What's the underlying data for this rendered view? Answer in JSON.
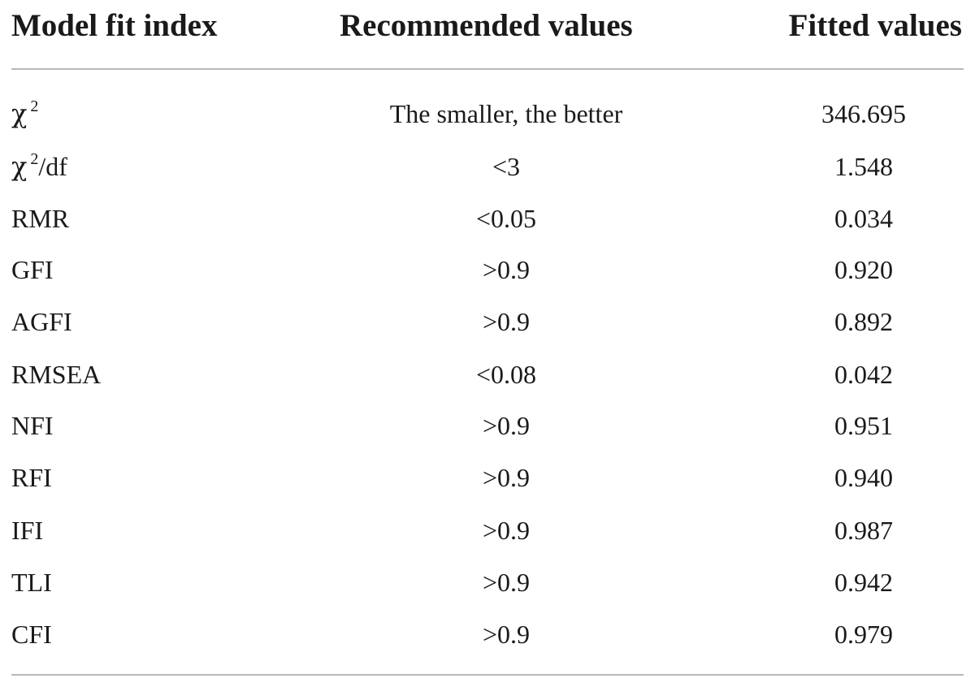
{
  "table": {
    "headers": [
      "Model fit index",
      "Recommended values",
      "Fitted values"
    ],
    "rows": [
      {
        "index": "χ",
        "index_sup": "2",
        "index_suffix": "",
        "recommended": "The smaller, the better",
        "fitted": "346.695"
      },
      {
        "index": "χ",
        "index_sup": "2",
        "index_suffix": "/df",
        "recommended": "<3",
        "fitted": "1.548"
      },
      {
        "index": "RMR",
        "recommended": "<0.05",
        "fitted": "0.034"
      },
      {
        "index": "GFI",
        "recommended": ">0.9",
        "fitted": "0.920"
      },
      {
        "index": "AGFI",
        "recommended": ">0.9",
        "fitted": "0.892"
      },
      {
        "index": "RMSEA",
        "recommended": "<0.08",
        "fitted": "0.042"
      },
      {
        "index": "NFI",
        "recommended": ">0.9",
        "fitted": "0.951"
      },
      {
        "index": "RFI",
        "recommended": ">0.9",
        "fitted": "0.940"
      },
      {
        "index": "IFI",
        "recommended": ">0.9",
        "fitted": "0.987"
      },
      {
        "index": "TLI",
        "recommended": ">0.9",
        "fitted": "0.942"
      },
      {
        "index": "CFI",
        "recommended": ">0.9",
        "fitted": "0.979"
      }
    ]
  }
}
